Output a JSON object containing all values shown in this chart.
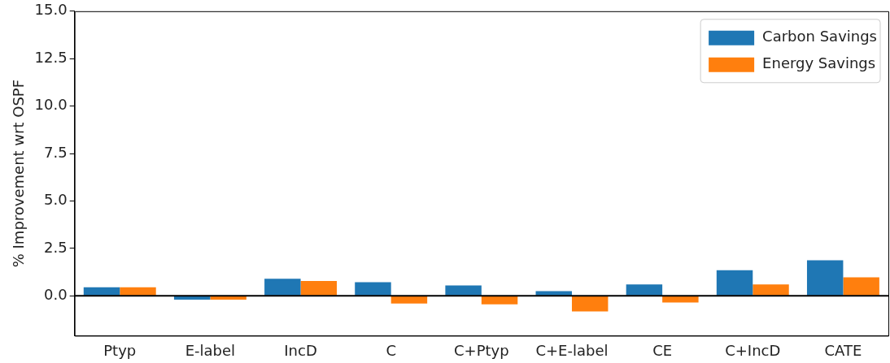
{
  "chart_data": {
    "type": "bar",
    "ylabel": "% Improvement wrt OSPF",
    "categories": [
      "Ptyp",
      "E-label",
      "IncD",
      "C",
      "C+Ptyp",
      "C+E-label",
      "CE",
      "C+IncD",
      "CATE"
    ],
    "series": [
      {
        "name": "Carbon Savings",
        "color": "#1f77b4",
        "values": [
          0.45,
          -0.2,
          0.9,
          0.72,
          0.55,
          0.25,
          0.6,
          1.35,
          1.88
        ]
      },
      {
        "name": "Energy Savings",
        "color": "#ff7f0e",
        "values": [
          0.45,
          -0.2,
          0.78,
          -0.4,
          -0.45,
          -0.82,
          -0.35,
          0.6,
          0.98
        ]
      }
    ],
    "ylim": [
      -2.1,
      15
    ],
    "yticks": [
      {
        "value": 0,
        "label": "0.0"
      },
      {
        "value": 2.5,
        "label": "2.5"
      },
      {
        "value": 5,
        "label": "5.0"
      },
      {
        "value": 7.5,
        "label": "7.5"
      },
      {
        "value": 10,
        "label": "10.0"
      },
      {
        "value": 12.5,
        "label": "12.5"
      },
      {
        "value": 15,
        "label": "15.0"
      }
    ],
    "ref_lines": [
      {
        "axis": "y",
        "value": 0,
        "color": "#000000"
      }
    ],
    "grid": false,
    "legend": "top right"
  }
}
